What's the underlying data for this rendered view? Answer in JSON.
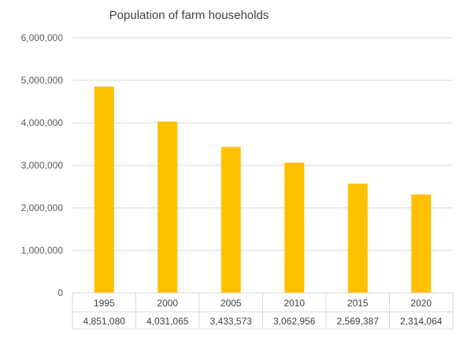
{
  "chart_data": {
    "type": "bar",
    "title": "Population of farm households",
    "categories": [
      "1995",
      "2000",
      "2005",
      "2010",
      "2015",
      "2020"
    ],
    "values": [
      4851080,
      4031065,
      3433573,
      3062956,
      2569387,
      2314064
    ],
    "value_labels": [
      "4,851,080",
      "4,031,065",
      "3,433,573",
      "3,062,956",
      "2,569,387",
      "2,314,064"
    ],
    "yticks": [
      "0",
      "1,000,000",
      "2,000,000",
      "3,000,000",
      "4,000,000",
      "5,000,000",
      "6,000,000"
    ],
    "ylim": [
      0,
      6000000
    ],
    "grid": true,
    "data_table": true,
    "bar_color": "#FFC000"
  }
}
